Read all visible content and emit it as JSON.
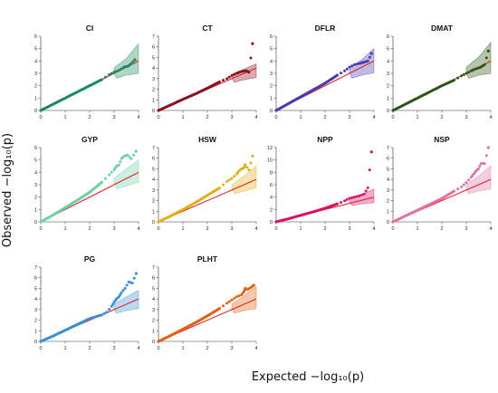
{
  "figure": {
    "xlabel": "Expected  −log₁₀(p)",
    "ylabel": "Observed  −log₁₀(p)",
    "colors": {
      "expected_line": "#d62728"
    }
  },
  "chart_data": [
    {
      "type": "scatter",
      "title": "CI",
      "color": "#1b8a5a",
      "xlim": [
        0,
        4
      ],
      "ylim": [
        0,
        6
      ],
      "xticks": [
        0,
        1,
        2,
        3,
        4
      ],
      "yticks": [
        0,
        1,
        2,
        3,
        4,
        5,
        6
      ],
      "points": [
        [
          0,
          0
        ],
        [
          0.5,
          0.5
        ],
        [
          1,
          1
        ],
        [
          1.5,
          1.5
        ],
        [
          2,
          2
        ],
        [
          2.5,
          2.5
        ],
        [
          2.8,
          2.9
        ],
        [
          3.0,
          3.1
        ],
        [
          3.2,
          3.25
        ],
        [
          3.4,
          3.5
        ],
        [
          3.5,
          3.55
        ],
        [
          3.6,
          3.6
        ],
        [
          3.7,
          3.8
        ],
        [
          3.85,
          4.1
        ]
      ],
      "band_upper": [
        [
          3,
          3.45
        ],
        [
          3.5,
          4.2
        ],
        [
          4,
          5.4
        ]
      ],
      "band_lower": [
        [
          3,
          2.55
        ],
        [
          3.5,
          2.85
        ],
        [
          4,
          3.0
        ]
      ]
    },
    {
      "type": "scatter",
      "title": "CT",
      "color": "#8b1020",
      "xlim": [
        0,
        4
      ],
      "ylim": [
        0,
        7
      ],
      "xticks": [
        0,
        1,
        2,
        3,
        4
      ],
      "yticks": [
        0,
        1,
        2,
        3,
        4,
        5,
        6,
        7
      ],
      "points": [
        [
          0,
          0
        ],
        [
          0.5,
          0.52
        ],
        [
          1,
          1.05
        ],
        [
          1.5,
          1.55
        ],
        [
          2,
          2.1
        ],
        [
          2.5,
          2.7
        ],
        [
          2.8,
          3.0
        ],
        [
          3.0,
          3.3
        ],
        [
          3.2,
          3.5
        ],
        [
          3.3,
          3.6
        ],
        [
          3.45,
          3.7
        ],
        [
          3.6,
          3.75
        ],
        [
          3.7,
          3.6
        ],
        [
          3.85,
          6.3
        ]
      ],
      "band_upper": [
        [
          3,
          3.4
        ],
        [
          3.5,
          3.9
        ],
        [
          4,
          4.4
        ]
      ],
      "band_lower": [
        [
          3,
          2.6
        ],
        [
          3.5,
          2.9
        ],
        [
          4,
          3.1
        ]
      ]
    },
    {
      "type": "scatter",
      "title": "DFLR",
      "color": "#4b38b0",
      "xlim": [
        0,
        4
      ],
      "ylim": [
        0,
        6
      ],
      "xticks": [
        0,
        1,
        2,
        3,
        4
      ],
      "yticks": [
        0,
        1,
        2,
        3,
        4,
        5,
        6
      ],
      "points": [
        [
          0,
          0
        ],
        [
          0.5,
          0.55
        ],
        [
          1,
          1.1
        ],
        [
          1.5,
          1.65
        ],
        [
          2,
          2.2
        ],
        [
          2.5,
          2.85
        ],
        [
          2.8,
          3.2
        ],
        [
          3.0,
          3.5
        ],
        [
          3.2,
          3.7
        ],
        [
          3.4,
          3.8
        ],
        [
          3.5,
          3.85
        ],
        [
          3.6,
          3.9
        ],
        [
          3.75,
          4.0
        ],
        [
          3.9,
          4.6
        ]
      ],
      "band_upper": [
        [
          3,
          3.45
        ],
        [
          3.5,
          4.1
        ],
        [
          4,
          5.0
        ]
      ],
      "band_lower": [
        [
          3,
          2.55
        ],
        [
          3.5,
          2.85
        ],
        [
          4,
          3.05
        ]
      ]
    },
    {
      "type": "scatter",
      "title": "DMAT",
      "color": "#2f5418",
      "xlim": [
        0,
        4
      ],
      "ylim": [
        0,
        6
      ],
      "xticks": [
        0,
        1,
        2,
        3,
        4
      ],
      "yticks": [
        0,
        1,
        2,
        3,
        4,
        5,
        6
      ],
      "points": [
        [
          0,
          0
        ],
        [
          0.5,
          0.5
        ],
        [
          1,
          1
        ],
        [
          1.5,
          1.5
        ],
        [
          2,
          2
        ],
        [
          2.5,
          2.45
        ],
        [
          2.8,
          2.8
        ],
        [
          3.0,
          3.0
        ],
        [
          3.2,
          3.2
        ],
        [
          3.3,
          3.3
        ],
        [
          3.45,
          3.4
        ],
        [
          3.6,
          3.5
        ],
        [
          3.75,
          3.7
        ],
        [
          3.9,
          4.8
        ]
      ],
      "band_upper": [
        [
          3,
          3.5
        ],
        [
          3.5,
          4.3
        ],
        [
          4,
          5.5
        ]
      ],
      "band_lower": [
        [
          3,
          2.55
        ],
        [
          3.5,
          2.85
        ],
        [
          4,
          3.0
        ]
      ]
    },
    {
      "type": "scatter",
      "title": "GYP",
      "color": "#6ed1a6",
      "xlim": [
        0,
        4
      ],
      "ylim": [
        0,
        6
      ],
      "xticks": [
        0,
        1,
        2,
        3,
        4
      ],
      "yticks": [
        0,
        1,
        2,
        3,
        4,
        5,
        6
      ],
      "points": [
        [
          0,
          0
        ],
        [
          0.5,
          0.55
        ],
        [
          1,
          1.15
        ],
        [
          1.5,
          1.75
        ],
        [
          2,
          2.4
        ],
        [
          2.5,
          3.2
        ],
        [
          2.8,
          3.8
        ],
        [
          3.0,
          4.2
        ],
        [
          3.1,
          4.5
        ],
        [
          3.2,
          4.6
        ],
        [
          3.3,
          5.1
        ],
        [
          3.4,
          5.3
        ],
        [
          3.55,
          5.4
        ],
        [
          3.7,
          5.1
        ],
        [
          3.9,
          5.7
        ]
      ],
      "band_upper": [
        [
          3,
          3.5
        ],
        [
          3.5,
          4.3
        ],
        [
          4,
          5.0
        ]
      ],
      "band_lower": [
        [
          3,
          2.6
        ],
        [
          3.5,
          2.9
        ],
        [
          4,
          3.2
        ]
      ]
    },
    {
      "type": "scatter",
      "title": "HSW",
      "color": "#e0b010",
      "xlim": [
        0,
        4
      ],
      "ylim": [
        0,
        7
      ],
      "xticks": [
        0,
        1,
        2,
        3,
        4
      ],
      "yticks": [
        0,
        1,
        2,
        3,
        4,
        5,
        6,
        7
      ],
      "points": [
        [
          0,
          0
        ],
        [
          0.5,
          0.55
        ],
        [
          1,
          1.15
        ],
        [
          1.5,
          1.8
        ],
        [
          2,
          2.5
        ],
        [
          2.5,
          3.2
        ],
        [
          2.8,
          3.8
        ],
        [
          3.0,
          4.1
        ],
        [
          3.2,
          4.5
        ],
        [
          3.3,
          4.8
        ],
        [
          3.4,
          5.0
        ],
        [
          3.5,
          5.1
        ],
        [
          3.55,
          5.4
        ],
        [
          3.7,
          4.9
        ],
        [
          3.85,
          6.2
        ]
      ],
      "band_upper": [
        [
          3,
          3.5
        ],
        [
          3.5,
          4.3
        ],
        [
          4,
          5.3
        ]
      ],
      "band_lower": [
        [
          3,
          2.6
        ],
        [
          3.5,
          2.9
        ],
        [
          4,
          3.2
        ]
      ]
    },
    {
      "type": "scatter",
      "title": "NPP",
      "color": "#d8106a",
      "xlim": [
        0,
        4
      ],
      "ylim": [
        0,
        12
      ],
      "xticks": [
        0,
        1,
        2,
        3,
        4
      ],
      "yticks": [
        0,
        2,
        4,
        6,
        8,
        10,
        12
      ],
      "points": [
        [
          0,
          0
        ],
        [
          0.5,
          0.5
        ],
        [
          1,
          1.05
        ],
        [
          1.5,
          1.6
        ],
        [
          2,
          2.2
        ],
        [
          2.5,
          2.9
        ],
        [
          2.8,
          3.4
        ],
        [
          3.0,
          3.8
        ],
        [
          3.2,
          4.0
        ],
        [
          3.4,
          4.2
        ],
        [
          3.6,
          4.5
        ],
        [
          3.75,
          5.5
        ],
        [
          3.9,
          11.3
        ]
      ],
      "band_upper": [
        [
          3,
          3.6
        ],
        [
          3.5,
          4.4
        ],
        [
          4,
          5.3
        ]
      ],
      "band_lower": [
        [
          3,
          2.6
        ],
        [
          3.5,
          2.9
        ],
        [
          4,
          3.1
        ]
      ]
    },
    {
      "type": "scatter",
      "title": "NSP",
      "color": "#e070a8",
      "xlim": [
        0,
        4
      ],
      "ylim": [
        0,
        7
      ],
      "xticks": [
        0,
        1,
        2,
        3,
        4
      ],
      "yticks": [
        0,
        1,
        2,
        3,
        4,
        5,
        6,
        7
      ],
      "points": [
        [
          0,
          0
        ],
        [
          0.5,
          0.55
        ],
        [
          1,
          1.1
        ],
        [
          1.5,
          1.65
        ],
        [
          2,
          2.2
        ],
        [
          2.5,
          2.9
        ],
        [
          2.8,
          3.3
        ],
        [
          3.0,
          3.7
        ],
        [
          3.2,
          4.2
        ],
        [
          3.3,
          4.5
        ],
        [
          3.4,
          4.8
        ],
        [
          3.5,
          5.0
        ],
        [
          3.6,
          5.5
        ],
        [
          3.75,
          5.5
        ],
        [
          3.9,
          7.0
        ]
      ],
      "band_upper": [
        [
          3,
          3.5
        ],
        [
          3.5,
          4.3
        ],
        [
          4,
          5.3
        ]
      ],
      "band_lower": [
        [
          3,
          2.6
        ],
        [
          3.5,
          2.9
        ],
        [
          4,
          3.1
        ]
      ]
    },
    {
      "type": "scatter",
      "title": "PG",
      "color": "#3a8fd0",
      "xlim": [
        0,
        4
      ],
      "ylim": [
        0,
        7
      ],
      "xticks": [
        0,
        1,
        2,
        3,
        4
      ],
      "yticks": [
        0,
        1,
        2,
        3,
        4,
        5,
        6,
        7
      ],
      "points": [
        [
          0,
          0
        ],
        [
          0.5,
          0.5
        ],
        [
          1,
          1.05
        ],
        [
          1.5,
          1.6
        ],
        [
          2,
          2.15
        ],
        [
          2.5,
          2.5
        ],
        [
          2.7,
          2.75
        ],
        [
          2.9,
          3.3
        ],
        [
          3.0,
          3.7
        ],
        [
          3.1,
          4.0
        ],
        [
          3.2,
          4.2
        ],
        [
          3.3,
          4.6
        ],
        [
          3.45,
          5.0
        ],
        [
          3.6,
          5.6
        ],
        [
          3.75,
          5.5
        ],
        [
          3.9,
          6.4
        ]
      ],
      "band_upper": [
        [
          3,
          3.5
        ],
        [
          3.5,
          4.2
        ],
        [
          4,
          4.8
        ]
      ],
      "band_lower": [
        [
          3,
          2.6
        ],
        [
          3.5,
          2.9
        ],
        [
          4,
          3.1
        ]
      ]
    },
    {
      "type": "scatter",
      "title": "PLHT",
      "color": "#e06010",
      "xlim": [
        0,
        4
      ],
      "ylim": [
        0,
        7
      ],
      "xticks": [
        0,
        1,
        2,
        3,
        4
      ],
      "yticks": [
        0,
        1,
        2,
        3,
        4,
        5,
        6,
        7
      ],
      "points": [
        [
          0,
          0
        ],
        [
          0.5,
          0.55
        ],
        [
          1,
          1.15
        ],
        [
          1.5,
          1.75
        ],
        [
          2,
          2.4
        ],
        [
          2.5,
          3.1
        ],
        [
          2.8,
          3.6
        ],
        [
          3.0,
          3.9
        ],
        [
          3.2,
          4.2
        ],
        [
          3.4,
          4.4
        ],
        [
          3.5,
          4.7
        ],
        [
          3.55,
          5.0
        ],
        [
          3.65,
          4.9
        ],
        [
          3.8,
          5.1
        ],
        [
          3.9,
          5.3
        ]
      ],
      "band_upper": [
        [
          3,
          3.5
        ],
        [
          3.5,
          4.3
        ],
        [
          4,
          5.2
        ]
      ],
      "band_lower": [
        [
          3,
          2.6
        ],
        [
          3.5,
          2.9
        ],
        [
          4,
          3.1
        ]
      ]
    }
  ]
}
